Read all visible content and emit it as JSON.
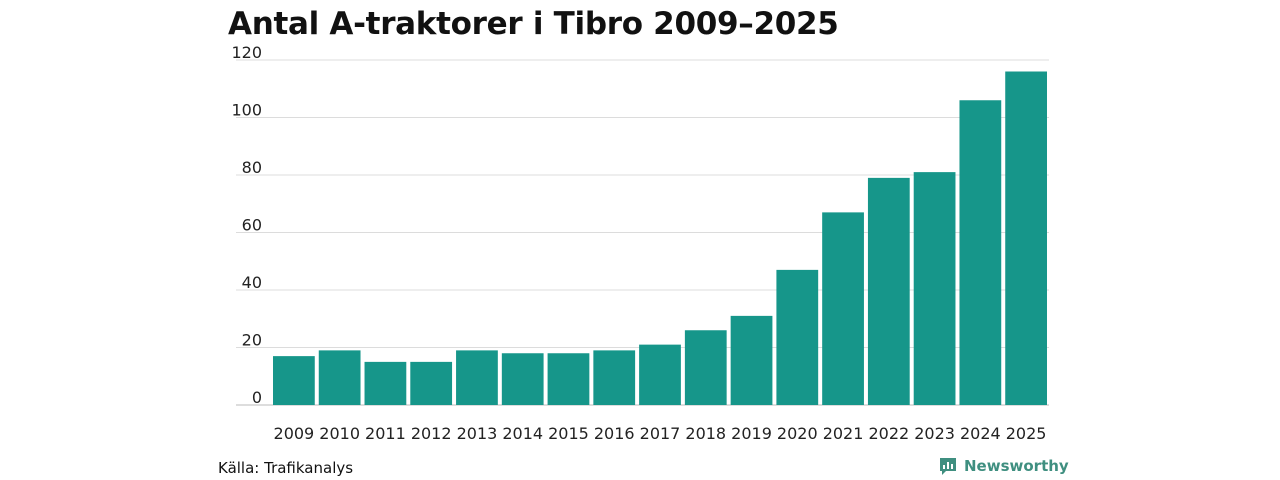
{
  "title": "Antal A-traktorer i Tibro 2009–2025",
  "source": "Källa: Trafikanalys",
  "brand": {
    "name": "Newsworthy",
    "icon": "newsworthy-logo-icon",
    "color": "#3f8f80"
  },
  "colors": {
    "bar": "#16968a",
    "grid": "#dcdcdc",
    "axis": "#bbbbbb"
  },
  "chart_data": {
    "type": "bar",
    "title": "Antal A-traktorer i Tibro 2009–2025",
    "xlabel": "",
    "ylabel": "",
    "categories": [
      "2009",
      "2010",
      "2011",
      "2012",
      "2013",
      "2014",
      "2015",
      "2016",
      "2017",
      "2018",
      "2019",
      "2020",
      "2021",
      "2022",
      "2023",
      "2024",
      "2025"
    ],
    "values": [
      17,
      19,
      15,
      15,
      19,
      18,
      18,
      19,
      21,
      26,
      31,
      47,
      67,
      79,
      81,
      106,
      116
    ],
    "ylim": [
      0,
      120
    ],
    "yticks": [
      0,
      20,
      40,
      60,
      80,
      100,
      120
    ],
    "grid": true,
    "legend": "none"
  }
}
